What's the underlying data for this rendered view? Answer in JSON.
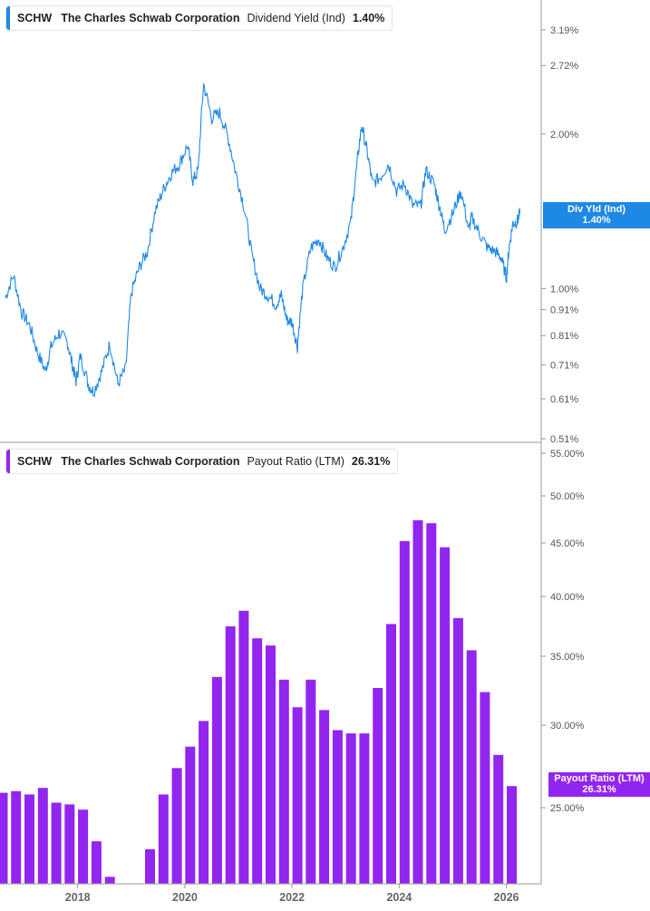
{
  "colors": {
    "yield_line": "#1e88e5",
    "payout_bar": "#9325f0",
    "axis": "#9a9a9a",
    "gridtext": "#555555"
  },
  "panel1": {
    "ticker": "SCHW",
    "company": "The Charles Schwab Corporation",
    "metric": "Dividend Yield (Ind)",
    "value": "1.40%",
    "tag_line1": "Div Yld (Ind)",
    "tag_line2": "1.40%"
  },
  "panel2": {
    "ticker": "SCHW",
    "company": "The Charles Schwab Corporation",
    "metric": "Payout Ratio (LTM)",
    "value": "26.31%",
    "tag_line1": "Payout Ratio (LTM)",
    "tag_line2": "26.31%"
  },
  "chart_data": [
    {
      "type": "line",
      "title": "SCHW The Charles Schwab Corporation Dividend Yield (Ind) 1.40%",
      "series": [
        {
          "name": "Div Yld (Ind)"
        }
      ],
      "scale": "log",
      "ylim": [
        0.51,
        3.5
      ],
      "yticks": [
        3.19,
        2.72,
        2.0,
        1.0,
        0.91,
        0.81,
        0.71,
        0.61,
        0.51
      ],
      "ytick_labels": [
        "3.19%",
        "2.72%",
        "2.00%",
        "1.00%",
        "0.91%",
        "0.81%",
        "0.71%",
        "0.61%",
        "0.51%"
      ],
      "x": [
        2016.65,
        2016.8,
        2016.95,
        2017.1,
        2017.25,
        2017.4,
        2017.5,
        2017.65,
        2017.8,
        2017.9,
        2017.97,
        2018.05,
        2018.2,
        2018.3,
        2018.45,
        2018.6,
        2018.75,
        2018.9,
        2019.0,
        2019.15,
        2019.3,
        2019.45,
        2019.6,
        2019.75,
        2019.9,
        2020.05,
        2020.15,
        2020.25,
        2020.35,
        2020.5,
        2020.65,
        2020.8,
        2020.95,
        2021.1,
        2021.25,
        2021.4,
        2021.55,
        2021.7,
        2021.8,
        2021.9,
        2022.0,
        2022.1,
        2022.2,
        2022.35,
        2022.5,
        2022.65,
        2022.8,
        2022.95,
        2023.1,
        2023.2,
        2023.3,
        2023.4,
        2023.5,
        2023.65,
        2023.8,
        2023.95,
        2024.1,
        2024.25,
        2024.4,
        2024.5,
        2024.65,
        2024.75,
        2024.85,
        2025.0,
        2025.15,
        2025.3,
        2025.35,
        2025.5,
        2025.65,
        2025.8,
        2025.9,
        2026.0,
        2026.05,
        2026.12,
        2026.2,
        2026.25
      ],
      "values": [
        0.96,
        1.06,
        0.9,
        0.85,
        0.75,
        0.69,
        0.77,
        0.82,
        0.79,
        0.71,
        0.66,
        0.74,
        0.65,
        0.63,
        0.69,
        0.78,
        0.65,
        0.7,
        0.98,
        1.1,
        1.18,
        1.42,
        1.56,
        1.68,
        1.75,
        1.9,
        1.62,
        1.7,
        2.5,
        2.15,
        2.2,
        1.98,
        1.68,
        1.45,
        1.16,
        1.0,
        0.97,
        0.93,
        0.97,
        0.87,
        0.86,
        0.77,
        1.0,
        1.2,
        1.25,
        1.15,
        1.1,
        1.2,
        1.35,
        1.7,
        2.08,
        1.85,
        1.6,
        1.65,
        1.75,
        1.55,
        1.6,
        1.45,
        1.45,
        1.7,
        1.6,
        1.45,
        1.3,
        1.4,
        1.55,
        1.3,
        1.38,
        1.28,
        1.2,
        1.18,
        1.15,
        1.05,
        1.2,
        1.34,
        1.35,
        1.4
      ]
    },
    {
      "type": "bar",
      "title": "SCHW The Charles Schwab Corporation Payout Ratio (LTM) 26.31%",
      "series": [
        {
          "name": "Payout Ratio (LTM)"
        }
      ],
      "ylim": [
        20,
        55
      ],
      "yticks": [
        55,
        50,
        45,
        40,
        35,
        30,
        25
      ],
      "ytick_labels": [
        "55.00%",
        "50.00%",
        "45.00%",
        "40.00%",
        "35.00%",
        "30.00%",
        "25.00%"
      ],
      "x": [
        2016.6,
        2016.85,
        2017.1,
        2017.35,
        2017.6,
        2017.85,
        2018.1,
        2018.35,
        2018.6,
        2018.85,
        2019.1,
        2019.35,
        2019.6,
        2019.85,
        2020.1,
        2020.35,
        2020.6,
        2020.85,
        2021.1,
        2021.35,
        2021.6,
        2021.85,
        2022.1,
        2022.35,
        2022.6,
        2022.85,
        2023.1,
        2023.35,
        2023.6,
        2023.85,
        2024.1,
        2024.35,
        2024.6,
        2024.85,
        2025.1,
        2025.35,
        2025.6,
        2025.85,
        2026.1
      ],
      "values": [
        25.9,
        26.0,
        25.8,
        26.2,
        25.3,
        25.2,
        24.9,
        23.3,
        21.5,
        21.0,
        20.9,
        22.9,
        25.8,
        27.4,
        28.7,
        30.3,
        33.5,
        37.5,
        38.8,
        36.5,
        35.9,
        33.3,
        31.3,
        33.3,
        31.1,
        29.7,
        29.5,
        29.5,
        32.7,
        37.7,
        45.2,
        47.4,
        47.1,
        44.6,
        38.2,
        35.5,
        32.4,
        28.2,
        26.31
      ],
      "xticks": [
        2018,
        2020,
        2022,
        2024,
        2026
      ],
      "xtick_labels": [
        "2018",
        "2020",
        "2022",
        "2024",
        "2026"
      ]
    }
  ]
}
